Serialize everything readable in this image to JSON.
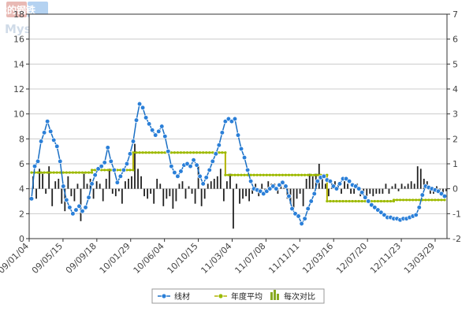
{
  "watermark": {
    "top": "我的钢铁",
    "bottom": "Mysteel.com"
  },
  "colors": {
    "series_line": "#1a6fc4",
    "series_marker": "#2a7fd8",
    "avg_line": "#b3b300",
    "avg_marker": "#99bb00",
    "bars": "#222222",
    "grid": "#cccccc",
    "axis": "#333333",
    "plot_bg": "#ffffff",
    "legend_bar_icon": "#88aa22"
  },
  "chart_data": {
    "type": "line",
    "x_tick_labels": [
      "09/01/04",
      "09/05/15",
      "09/09/18",
      "10/01/29",
      "10/06/04",
      "10/10/15",
      "11/03/04",
      "11/07/08",
      "11/11/11",
      "12/03/16",
      "12/07/20",
      "12/11/23",
      "13/03/29"
    ],
    "left_axis": {
      "ylim": [
        0,
        18
      ],
      "ticks": [
        0,
        2,
        4,
        6,
        8,
        10,
        12,
        14,
        16,
        18
      ]
    },
    "right_axis": {
      "ylim": [
        -2,
        7
      ],
      "ticks": [
        -2,
        -1,
        0,
        1,
        2,
        3,
        4,
        5,
        6,
        7
      ]
    },
    "grid": true,
    "legend_position": "bottom-center",
    "series": [
      {
        "name": "线材",
        "axis": "left",
        "style": "line-markers",
        "points": [
          [
            0,
            3.2
          ],
          [
            1,
            5.8
          ],
          [
            2,
            6.2
          ],
          [
            3,
            7.8
          ],
          [
            4,
            8.5
          ],
          [
            5,
            9.4
          ],
          [
            6,
            8.6
          ],
          [
            7,
            7.9
          ],
          [
            8,
            7.4
          ],
          [
            9,
            6.2
          ],
          [
            10,
            4.2
          ],
          [
            11,
            3.1
          ],
          [
            12,
            2.5
          ],
          [
            13,
            2.0
          ],
          [
            14,
            2.3
          ],
          [
            15,
            2.6
          ],
          [
            16,
            2.2
          ],
          [
            17,
            2.5
          ],
          [
            18,
            3.3
          ],
          [
            19,
            4.4
          ],
          [
            20,
            5.1
          ],
          [
            21,
            5.6
          ],
          [
            22,
            5.8
          ],
          [
            23,
            6.1
          ],
          [
            24,
            7.3
          ],
          [
            25,
            6.2
          ],
          [
            26,
            5.5
          ],
          [
            27,
            4.5
          ],
          [
            28,
            5.0
          ],
          [
            29,
            5.5
          ],
          [
            30,
            6.0
          ],
          [
            31,
            6.8
          ],
          [
            32,
            7.8
          ],
          [
            33,
            9.5
          ],
          [
            34,
            10.8
          ],
          [
            35,
            10.5
          ],
          [
            36,
            9.7
          ],
          [
            37,
            9.2
          ],
          [
            38,
            8.7
          ],
          [
            39,
            8.3
          ],
          [
            40,
            8.6
          ],
          [
            41,
            9.0
          ],
          [
            42,
            8.2
          ],
          [
            43,
            7.0
          ],
          [
            44,
            5.8
          ],
          [
            45,
            5.3
          ],
          [
            46,
            5.0
          ],
          [
            47,
            5.4
          ],
          [
            48,
            5.9
          ],
          [
            49,
            6.0
          ],
          [
            50,
            5.8
          ],
          [
            51,
            6.3
          ],
          [
            52,
            5.9
          ],
          [
            53,
            5.0
          ],
          [
            54,
            4.4
          ],
          [
            55,
            4.9
          ],
          [
            56,
            5.5
          ],
          [
            57,
            6.2
          ],
          [
            58,
            6.8
          ],
          [
            59,
            7.5
          ],
          [
            60,
            8.5
          ],
          [
            61,
            9.4
          ],
          [
            62,
            9.6
          ],
          [
            63,
            9.4
          ],
          [
            64,
            9.6
          ],
          [
            65,
            8.3
          ],
          [
            66,
            7.2
          ],
          [
            67,
            6.5
          ],
          [
            68,
            5.5
          ],
          [
            69,
            4.6
          ],
          [
            70,
            4.0
          ],
          [
            71,
            3.9
          ],
          [
            72,
            3.8
          ],
          [
            73,
            3.6
          ],
          [
            74,
            3.8
          ],
          [
            75,
            4.0
          ],
          [
            76,
            4.2
          ],
          [
            77,
            4.0
          ],
          [
            78,
            4.3
          ],
          [
            79,
            4.5
          ],
          [
            80,
            4.2
          ],
          [
            81,
            3.4
          ],
          [
            82,
            2.4
          ],
          [
            83,
            2.0
          ],
          [
            84,
            1.8
          ],
          [
            85,
            1.2
          ],
          [
            86,
            1.6
          ],
          [
            87,
            2.4
          ],
          [
            88,
            3.0
          ],
          [
            89,
            3.6
          ],
          [
            90,
            4.6
          ],
          [
            91,
            4.9
          ],
          [
            92,
            5.0
          ],
          [
            93,
            4.7
          ],
          [
            94,
            4.6
          ],
          [
            95,
            4.2
          ],
          [
            96,
            4.0
          ],
          [
            97,
            4.4
          ],
          [
            98,
            4.8
          ],
          [
            99,
            4.8
          ],
          [
            100,
            4.6
          ],
          [
            101,
            4.3
          ],
          [
            102,
            4.2
          ],
          [
            103,
            4.0
          ],
          [
            104,
            3.7
          ],
          [
            105,
            3.3
          ],
          [
            106,
            3.0
          ],
          [
            107,
            2.7
          ],
          [
            108,
            2.5
          ],
          [
            109,
            2.3
          ],
          [
            110,
            2.1
          ],
          [
            111,
            1.9
          ],
          [
            112,
            1.7
          ],
          [
            113,
            1.7
          ],
          [
            114,
            1.6
          ],
          [
            115,
            1.6
          ],
          [
            116,
            1.5
          ],
          [
            117,
            1.6
          ],
          [
            118,
            1.6
          ],
          [
            119,
            1.7
          ],
          [
            120,
            1.8
          ],
          [
            121,
            1.9
          ],
          [
            122,
            2.5
          ],
          [
            123,
            3.5
          ],
          [
            124,
            4.2
          ],
          [
            125,
            4.1
          ],
          [
            126,
            4.0
          ],
          [
            127,
            3.9
          ],
          [
            128,
            3.8
          ],
          [
            129,
            3.6
          ],
          [
            130,
            3.4
          ]
        ]
      },
      {
        "name": "年度平均",
        "axis": "left",
        "style": "step-markers",
        "points": [
          [
            0,
            5.3
          ],
          [
            19,
            5.3
          ],
          [
            19,
            5.5
          ],
          [
            32,
            5.5
          ],
          [
            32,
            6.9
          ],
          [
            61,
            6.9
          ],
          [
            61,
            5.1
          ],
          [
            93,
            5.1
          ],
          [
            93,
            3.0
          ],
          [
            114,
            3.0
          ],
          [
            114,
            3.1
          ],
          [
            130,
            3.1
          ]
        ]
      },
      {
        "name": "每次对比",
        "axis": "right",
        "style": "bars",
        "values": [
          0.5,
          -0.4,
          0.8,
          0.6,
          -0.2,
          0.9,
          -0.7,
          0.3,
          0.4,
          -0.6,
          -0.9,
          0.5,
          -0.3,
          -0.5,
          0.2,
          -1.3,
          0.6,
          0.2,
          0.4,
          -0.4,
          0.3,
          0.2,
          -0.5,
          0.4,
          0.8,
          -0.2,
          -0.3,
          -0.1,
          -0.6,
          0.3,
          0.4,
          0.5,
          1.8,
          0.8,
          0.5,
          -0.3,
          -0.4,
          -0.2,
          -0.6,
          0.4,
          0.2,
          -0.7,
          -0.4,
          -0.3,
          -0.8,
          -0.5,
          0.2,
          0.3,
          -0.4,
          0.1,
          -0.2,
          -0.6,
          0.9,
          -0.7,
          -0.4,
          0.2,
          0.3,
          0.4,
          0.5,
          0.8,
          -0.5,
          0.3,
          0.6,
          -1.6,
          0.2,
          -0.6,
          -0.4,
          -0.3,
          -0.5,
          -0.2,
          0.2,
          -0.3,
          0.2,
          -0.1,
          0.3,
          0.2,
          0.2,
          -0.2,
          0.3,
          0.2,
          -0.4,
          -0.6,
          -0.8,
          -0.4,
          -0.2,
          -0.7,
          0.4,
          0.6,
          0.5,
          0.6,
          1.0,
          0.4,
          0.2,
          -0.3,
          0.2,
          0.3,
          0.2,
          -0.2,
          0.3,
          0.2,
          -0.2,
          -0.2,
          0.2,
          -0.3,
          -0.2,
          -0.3,
          -0.2,
          -0.3,
          -0.2,
          -0.2,
          -0.2,
          0.2,
          -0.2,
          0.1,
          0.2,
          -0.1,
          0.2,
          0.1,
          0.2,
          0.3,
          0.2,
          0.9,
          0.8,
          0.4,
          0.3,
          -0.2,
          -0.2,
          0.1,
          -0.2,
          -0.2,
          -0.1
        ]
      }
    ]
  }
}
